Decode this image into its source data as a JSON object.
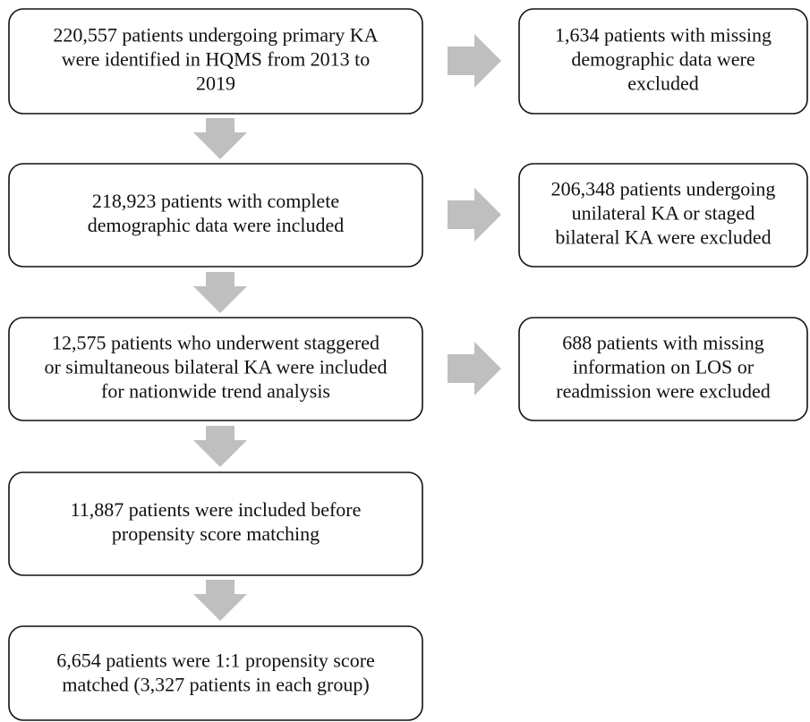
{
  "nodes": [
    {
      "lines": [
        "220,557 patients undergoing primary KA",
        "were identified in HQMS from 2013 to",
        "2019"
      ]
    },
    {
      "lines": [
        "218,923 patients with complete",
        "demographic data were included"
      ]
    },
    {
      "lines": [
        "12,575 patients who underwent staggered",
        "or simultaneous bilateral KA were included",
        "for nationwide trend analysis"
      ]
    },
    {
      "lines": [
        "11,887 patients were included before",
        "propensity score matching"
      ]
    },
    {
      "lines": [
        "6,654 patients were 1:1 propensity score",
        "matched (3,327 patients in each group)"
      ]
    }
  ],
  "exclusions": [
    {
      "lines": [
        "1,634 patients with missing",
        "demographic data were",
        "excluded"
      ]
    },
    {
      "lines": [
        "206,348 patients undergoing",
        "unilateral KA or staged",
        "bilateral KA were excluded"
      ]
    },
    {
      "lines": [
        "688 patients with missing",
        "information on LOS or",
        "readmission were excluded"
      ]
    }
  ]
}
